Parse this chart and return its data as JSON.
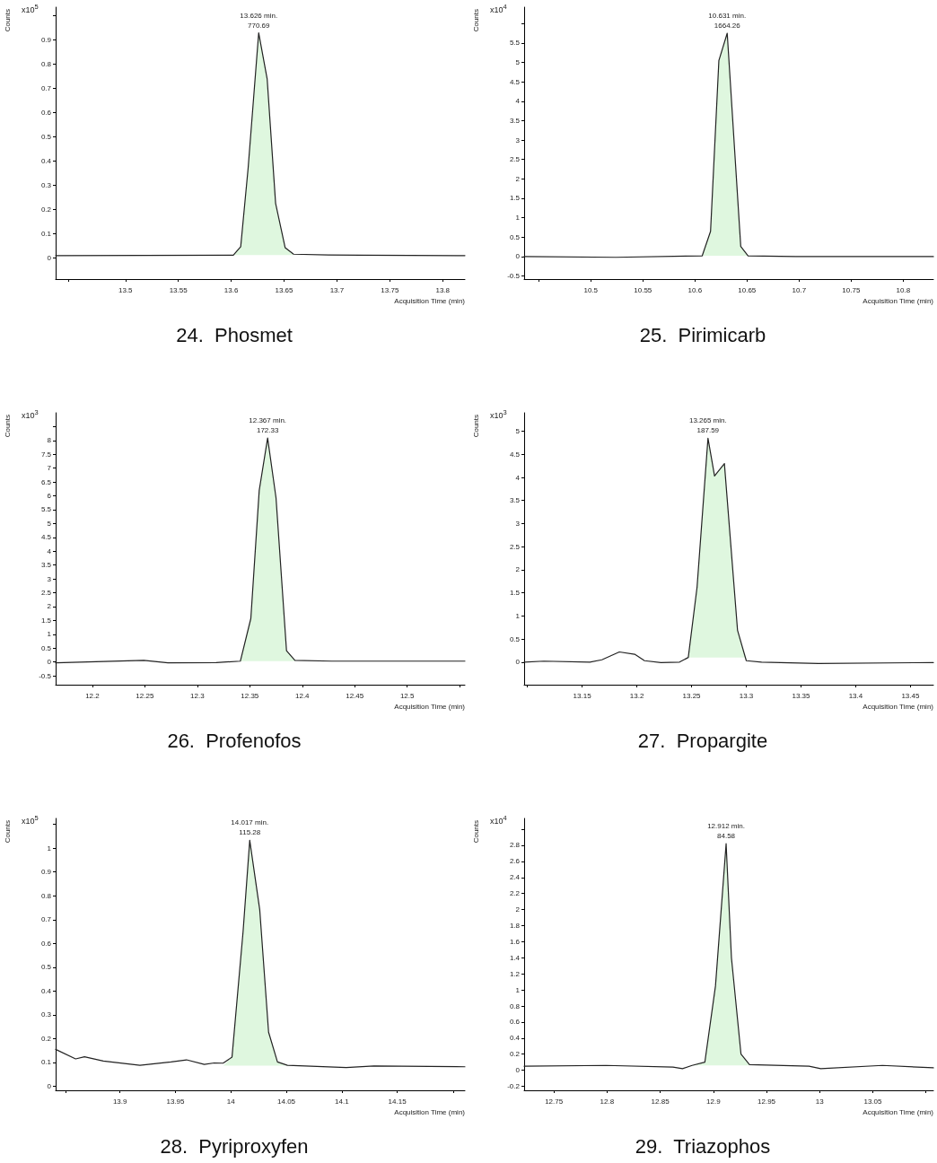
{
  "chart_data": [
    {
      "type": "line",
      "title": "24.  Phosmet",
      "ylabel": "Counts",
      "xlabel": "Acquisition Time (min)",
      "marker": "none",
      "line_style": "solid",
      "xlim": [
        13.434,
        13.821
      ],
      "xticks": [
        {
          "value": 13.446,
          "label": null
        },
        13.5,
        13.55,
        13.6,
        13.65,
        13.7,
        13.75,
        13.8
      ],
      "ylim": [
        -0.088,
        1.036
      ],
      "yticks": [
        0,
        0.1,
        0.2,
        0.3,
        0.4,
        0.5,
        0.6,
        0.7,
        0.8,
        0.9,
        {
          "value": 1,
          "label": null
        }
      ],
      "annotations": [
        "x10$^{5}$",
        {
          "text": "13.626 min.\n770.69",
          "x": 13.626,
          "y": 0.93
        }
      ],
      "series": [
        {
          "type": "area",
          "color": "#dff7df",
          "x": [
            13.602,
            13.609,
            13.616,
            13.626,
            13.634,
            13.642,
            13.651,
            13.659
          ],
          "values": [
            0.011,
            0.046,
            0.37,
            0.93,
            0.74,
            0.225,
            0.042,
            0.015
          ]
        },
        {
          "type": "line",
          "color": "#222222",
          "x": [
            13.434,
            13.602,
            13.609,
            13.616,
            13.626,
            13.634,
            13.642,
            13.651,
            13.659,
            13.692,
            13.723,
            13.821
          ],
          "values": [
            0.009,
            0.011,
            0.046,
            0.37,
            0.93,
            0.74,
            0.225,
            0.042,
            0.015,
            0.012,
            0.011,
            0.009
          ]
        }
      ]
    },
    {
      "type": "line",
      "title": "25.  Pirimicarb",
      "ylabel": "Counts",
      "xlabel": "Acquisition Time (min)",
      "marker": "none",
      "line_style": "solid",
      "xlim": [
        10.436,
        10.829
      ],
      "xticks": [
        {
          "value": 10.45,
          "label": null
        },
        10.5,
        10.55,
        10.6,
        10.65,
        10.7,
        10.75,
        10.8
      ],
      "ylim": [
        -0.58,
        6.42
      ],
      "yticks": [
        -0.5,
        0,
        0.5,
        1,
        1.5,
        2,
        2.5,
        3,
        3.5,
        4,
        4.5,
        5,
        5.5,
        {
          "value": 6,
          "label": null
        }
      ],
      "annotations": [
        "x10$^{4}$",
        {
          "text": "10.631 min.\n1664.26",
          "x": 10.631,
          "y": 5.75
        }
      ],
      "series": [
        {
          "type": "area",
          "color": "#dff7df",
          "x": [
            10.607,
            10.615,
            10.623,
            10.631,
            10.644,
            10.651
          ],
          "values": [
            0.02,
            0.65,
            5.05,
            5.75,
            0.26,
            0.02
          ]
        },
        {
          "type": "line",
          "color": "#222222",
          "x": [
            10.436,
            10.524,
            10.607,
            10.615,
            10.623,
            10.631,
            10.644,
            10.651,
            10.697,
            10.829
          ],
          "values": [
            0,
            -0.02,
            0.02,
            0.65,
            5.05,
            5.75,
            0.26,
            0.02,
            0,
            0
          ]
        }
      ]
    },
    {
      "type": "line",
      "title": "26.  Profenofos",
      "ylabel": "Counts",
      "xlabel": "Acquisition Time (min)",
      "marker": "none",
      "line_style": "solid",
      "xlim": [
        12.165,
        12.555
      ],
      "xticks": [
        12.2,
        12.25,
        12.3,
        12.35,
        12.4,
        12.45,
        12.5,
        {
          "value": 12.55,
          "label": null
        }
      ],
      "ylim": [
        -0.82,
        9.0
      ],
      "yticks": [
        -0.5,
        0,
        0.5,
        1,
        1.5,
        2,
        2.5,
        3,
        3.5,
        4,
        4.5,
        5,
        5.5,
        6,
        6.5,
        7,
        7.5,
        8,
        {
          "value": 8.5,
          "label": null
        }
      ],
      "annotations": [
        "x10$^{3}$",
        {
          "text": "12.367 min.\n172.33",
          "x": 12.367,
          "y": 8.09
        }
      ],
      "series": [
        {
          "type": "area",
          "color": "#dff7df",
          "x": [
            12.341,
            12.351,
            12.359,
            12.367,
            12.375,
            12.385,
            12.393
          ],
          "values": [
            0.03,
            1.57,
            6.2,
            8.09,
            5.93,
            0.41,
            0.06
          ]
        },
        {
          "type": "line",
          "color": "#222222",
          "x": [
            12.165,
            12.249,
            12.272,
            12.318,
            12.341,
            12.351,
            12.359,
            12.367,
            12.375,
            12.385,
            12.393,
            12.428,
            12.555
          ],
          "values": [
            -0.03,
            0.06,
            -0.03,
            -0.02,
            0.03,
            1.57,
            6.2,
            8.09,
            5.93,
            0.41,
            0.06,
            0.03,
            0.03
          ]
        }
      ]
    },
    {
      "type": "line",
      "title": "27.  Propargite",
      "ylabel": "Counts",
      "xlabel": "Acquisition Time (min)",
      "marker": "none",
      "line_style": "solid",
      "xlim": [
        13.097,
        13.471
      ],
      "xticks": [
        {
          "value": 13.1,
          "label": null
        },
        13.15,
        13.2,
        13.25,
        13.3,
        13.35,
        13.4,
        13.45
      ],
      "ylim": [
        -0.49,
        5.4
      ],
      "yticks": [
        0,
        0.5,
        1,
        1.5,
        2,
        2.5,
        3,
        3.5,
        4,
        4.5,
        5
      ],
      "annotations": [
        "x10$^{3}$",
        {
          "text": "13.265 min.\n187.59",
          "x": 13.265,
          "y": 4.85
        }
      ],
      "series": [
        {
          "type": "area",
          "color": "#dff7df",
          "x": [
            13.247,
            13.255,
            13.265,
            13.271,
            13.28,
            13.292,
            13.3
          ],
          "values": [
            0.1,
            1.62,
            4.85,
            4.03,
            4.3,
            0.69,
            0.03
          ]
        },
        {
          "type": "line",
          "color": "#222222",
          "x": [
            13.097,
            13.115,
            13.157,
            13.168,
            13.184,
            13.198,
            13.207,
            13.222,
            13.239,
            13.247,
            13.255,
            13.265,
            13.271,
            13.28,
            13.292,
            13.3,
            13.314,
            13.366,
            13.471
          ],
          "values": [
            0,
            0.02,
            0,
            0.05,
            0.22,
            0.17,
            0.03,
            -0.01,
            0,
            0.1,
            1.62,
            4.85,
            4.03,
            4.3,
            0.69,
            0.03,
            0,
            -0.03,
            -0.01
          ]
        }
      ]
    },
    {
      "type": "line",
      "title": "28.  Pyriproxyfen",
      "ylabel": "Counts",
      "xlabel": "Acquisition Time (min)",
      "marker": "none",
      "line_style": "solid",
      "xlim": [
        13.842,
        14.211
      ],
      "xticks": [
        {
          "value": 13.851,
          "label": null
        },
        13.9,
        13.95,
        14,
        14.05,
        14.1,
        14.15,
        {
          "value": 14.201,
          "label": null
        }
      ],
      "ylim": [
        -0.017,
        1.125
      ],
      "yticks": [
        0,
        0.1,
        0.2,
        0.3,
        0.4,
        0.5,
        0.6,
        0.7,
        0.8,
        0.9,
        1,
        {
          "value": 1.1,
          "label": null
        }
      ],
      "annotations": [
        "x10$^{5}$",
        {
          "text": "14.017 min.\n115.28",
          "x": 14.017,
          "y": 1.033
        }
      ],
      "series": [
        {
          "type": "area",
          "color": "#dff7df",
          "x": [
            13.993,
            14.001,
            14.011,
            14.017,
            14.026,
            14.034,
            14.042,
            14.051
          ],
          "values": [
            0.087,
            0.122,
            0.65,
            1.033,
            0.742,
            0.227,
            0.102,
            0.088
          ]
        },
        {
          "type": "line",
          "color": "#222222",
          "x": [
            13.842,
            13.86,
            13.868,
            13.885,
            13.918,
            13.946,
            13.96,
            13.976,
            13.985,
            13.993,
            14.001,
            14.011,
            14.017,
            14.026,
            14.034,
            14.042,
            14.051,
            14.104,
            14.129,
            14.211
          ],
          "values": [
            0.155,
            0.115,
            0.124,
            0.106,
            0.088,
            0.102,
            0.111,
            0.092,
            0.098,
            0.097,
            0.122,
            0.65,
            1.033,
            0.742,
            0.227,
            0.102,
            0.088,
            0.079,
            0.085,
            0.082
          ]
        }
      ]
    },
    {
      "type": "line",
      "title": "29.  Triazophos",
      "ylabel": "Counts",
      "xlabel": "Acquisition Time (min)",
      "marker": "none",
      "line_style": "solid",
      "xlim": [
        12.722,
        13.107
      ],
      "xticks": [
        12.75,
        12.8,
        12.85,
        12.9,
        12.95,
        13,
        13.05,
        {
          "value": 13.1,
          "label": null
        }
      ],
      "ylim": [
        -0.25,
        3.135
      ],
      "yticks": [
        -0.2,
        0,
        0.2,
        0.4,
        0.6,
        0.8,
        1,
        1.2,
        1.4,
        1.6,
        1.8,
        2,
        2.2,
        2.4,
        2.6,
        2.8,
        {
          "value": 3,
          "label": null
        }
      ],
      "annotations": [
        "x10$^{4}$",
        {
          "text": "12.912 min.\n84.58",
          "x": 12.912,
          "y": 2.82
        }
      ],
      "series": [
        {
          "type": "area",
          "color": "#dff7df",
          "x": [
            12.88,
            12.892,
            12.902,
            12.912,
            12.917,
            12.926,
            12.934
          ],
          "values": [
            0.06,
            0.1,
            1.05,
            2.82,
            1.4,
            0.2,
            0.07
          ]
        },
        {
          "type": "line",
          "color": "#222222",
          "x": [
            12.722,
            12.799,
            12.862,
            12.871,
            12.88,
            12.892,
            12.902,
            12.912,
            12.917,
            12.926,
            12.934,
            12.99,
            13.001,
            13.059,
            13.107
          ],
          "values": [
            0.05,
            0.06,
            0.04,
            0.02,
            0.06,
            0.1,
            1.05,
            2.82,
            1.4,
            0.2,
            0.07,
            0.05,
            0.02,
            0.06,
            0.03
          ]
        }
      ]
    }
  ]
}
